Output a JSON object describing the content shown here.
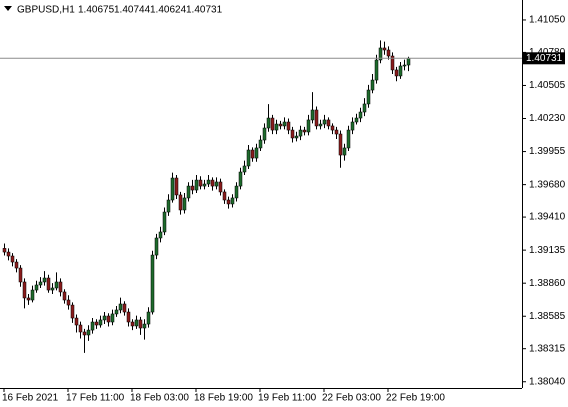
{
  "chart_data": {
    "type": "candlestick",
    "title": "GBPUSD,H1",
    "categories": [
      "16 Feb 2021",
      null,
      null,
      null,
      null,
      null,
      null,
      null,
      null,
      null,
      null,
      null,
      null,
      null,
      null,
      null,
      "17 Feb 11:00",
      null,
      null,
      null,
      null,
      null,
      null,
      null,
      null,
      null,
      null,
      null,
      null,
      null,
      null,
      null,
      "18 Feb 03:00",
      null,
      null,
      null,
      null,
      null,
      null,
      null,
      null,
      null,
      null,
      null,
      null,
      null,
      null,
      null,
      "18 Feb 19:00",
      null,
      null,
      null,
      null,
      null,
      null,
      null,
      null,
      null,
      null,
      null,
      null,
      null,
      null,
      null,
      "19 Feb 11:00",
      null,
      null,
      null,
      null,
      null,
      null,
      null,
      null,
      null,
      null,
      null,
      null,
      null,
      null,
      null,
      "22 Feb 03:00",
      null,
      null,
      null,
      null,
      null,
      null,
      null,
      null,
      null,
      null,
      null,
      null,
      null,
      null,
      null,
      "22 Feb 19:00",
      null,
      null,
      null,
      null,
      null
    ],
    "open": [
      1.3915,
      1.39119,
      1.39086,
      1.39036,
      1.38986,
      1.3887,
      1.38737,
      1.3872,
      1.38803,
      1.38845,
      1.3887,
      1.38903,
      1.38803,
      1.3882,
      1.3887,
      1.38787,
      1.3872,
      1.38678,
      1.3857,
      1.38512,
      1.38454,
      1.38429,
      1.3847,
      1.38537,
      1.38512,
      1.38554,
      1.38587,
      1.38537,
      1.38604,
      1.38637,
      1.38687,
      1.3862,
      1.38537,
      1.38504,
      1.38554,
      1.38487,
      1.3852,
      1.3862,
      1.39094,
      1.39236,
      1.39286,
      1.39452,
      1.39552,
      1.39735,
      1.39594,
      1.39469,
      1.39569,
      1.39668,
      1.39635,
      1.39718,
      1.39668,
      1.39685,
      1.39718,
      1.39668,
      1.39702,
      1.39619,
      1.39552,
      1.39519,
      1.39569,
      1.39668,
      1.39785,
      1.39835,
      1.39968,
      1.39901,
      1.39985,
      1.40051,
      1.40151,
      1.40234,
      1.40134,
      1.40184,
      1.40168,
      1.40201,
      1.40134,
      1.40068,
      1.40084,
      1.40134,
      1.40118,
      1.40218,
      1.40301,
      1.40168,
      1.40184,
      1.40218,
      1.40168,
      1.40134,
      1.40101,
      1.39926,
      1.39985,
      1.40134,
      1.40201,
      1.40234,
      1.40284,
      1.40351,
      1.40467,
      1.4055,
      1.40717,
      1.40817,
      1.408,
      1.4075,
      1.40634,
      1.40584,
      1.40667,
      1.40675
    ],
    "high": [
      1.3919,
      1.3915,
      1.3911,
      1.3906,
      1.3901,
      1.389,
      1.3877,
      1.3884,
      1.3888,
      1.3891,
      1.3896,
      1.3893,
      1.3886,
      1.3895,
      1.389,
      1.3881,
      1.3876,
      1.387,
      1.386,
      1.3854,
      1.3848,
      1.3851,
      1.3857,
      1.3856,
      1.3859,
      1.3862,
      1.3861,
      1.3864,
      1.3867,
      1.3874,
      1.3871,
      1.3865,
      1.3856,
      1.3859,
      1.3858,
      1.3856,
      1.3866,
      1.3913,
      1.3927,
      1.3933,
      1.3949,
      1.396,
      1.3978,
      1.3976,
      1.3962,
      1.3961,
      1.397,
      1.3972,
      1.3976,
      1.3975,
      1.3972,
      1.3976,
      1.3974,
      1.3974,
      1.3973,
      1.3964,
      1.3958,
      1.396,
      1.397,
      1.3982,
      1.3988,
      1.4001,
      1.3999,
      1.4002,
      1.4009,
      1.4019,
      1.4035,
      1.4026,
      1.4022,
      1.4021,
      1.4024,
      1.4023,
      1.4016,
      1.4012,
      1.4017,
      1.4016,
      1.4026,
      1.4045,
      1.4033,
      1.4022,
      1.4026,
      1.4024,
      1.4019,
      1.4016,
      1.4013,
      1.4002,
      1.4017,
      1.4024,
      1.4027,
      1.4032,
      1.404,
      1.4051,
      1.406,
      1.4076,
      1.4088,
      1.4087,
      1.4083,
      1.4078,
      1.4066,
      1.407,
      1.4072,
      1.40744
    ],
    "low": [
      1.3909,
      1.3905,
      1.39,
      1.3895,
      1.3883,
      1.3865,
      1.3868,
      1.387,
      1.3878,
      1.3882,
      1.3884,
      1.3878,
      1.3877,
      1.388,
      1.3875,
      1.3869,
      1.3864,
      1.3853,
      1.3845,
      1.384,
      1.3828,
      1.3838,
      1.3844,
      1.3848,
      1.3849,
      1.3852,
      1.385,
      1.3851,
      1.3858,
      1.3861,
      1.3859,
      1.385,
      1.3847,
      1.3848,
      1.3843,
      1.3839,
      1.3849,
      1.386,
      1.3906,
      1.392,
      1.3926,
      1.3942,
      1.3953,
      1.3956,
      1.3943,
      1.3944,
      1.3954,
      1.396,
      1.3961,
      1.3964,
      1.3964,
      1.3966,
      1.3963,
      1.3964,
      1.3959,
      1.3952,
      1.3948,
      1.3949,
      1.3954,
      1.3964,
      1.3976,
      1.3981,
      1.3987,
      1.3987,
      1.3996,
      1.4002,
      1.4012,
      1.401,
      1.401,
      1.4014,
      1.4014,
      1.401,
      1.4003,
      1.4004,
      1.4005,
      1.4009,
      1.4009,
      1.4019,
      1.4014,
      1.4014,
      1.4015,
      1.4014,
      1.401,
      1.4006,
      1.3982,
      1.3988,
      1.3996,
      1.401,
      1.4018,
      1.402,
      1.4025,
      1.4032,
      1.4044,
      1.4052,
      1.4069,
      1.4076,
      1.4072,
      1.406,
      1.4054,
      1.4056,
      1.4063,
      1.40624
    ],
    "close": [
      1.39119,
      1.39086,
      1.39036,
      1.38986,
      1.3887,
      1.38737,
      1.3872,
      1.38803,
      1.38845,
      1.3887,
      1.38903,
      1.38803,
      1.3882,
      1.3887,
      1.38787,
      1.3872,
      1.38678,
      1.3857,
      1.38512,
      1.38454,
      1.38429,
      1.3847,
      1.38537,
      1.38512,
      1.38554,
      1.38587,
      1.38537,
      1.38604,
      1.38637,
      1.38687,
      1.3862,
      1.38537,
      1.38504,
      1.38554,
      1.38487,
      1.3852,
      1.3862,
      1.39094,
      1.39236,
      1.39286,
      1.39452,
      1.39552,
      1.39735,
      1.39594,
      1.39469,
      1.39569,
      1.39668,
      1.39635,
      1.39718,
      1.39668,
      1.39685,
      1.39718,
      1.39668,
      1.39702,
      1.39619,
      1.39552,
      1.39519,
      1.39569,
      1.39668,
      1.39785,
      1.39835,
      1.39968,
      1.39901,
      1.39985,
      1.40051,
      1.40151,
      1.40234,
      1.40134,
      1.40184,
      1.40168,
      1.40201,
      1.40134,
      1.40068,
      1.40084,
      1.40134,
      1.40118,
      1.40218,
      1.40301,
      1.40168,
      1.40184,
      1.40218,
      1.40168,
      1.40134,
      1.40101,
      1.39926,
      1.39985,
      1.40134,
      1.40201,
      1.40234,
      1.40284,
      1.40351,
      1.40467,
      1.4055,
      1.40717,
      1.40817,
      1.408,
      1.4075,
      1.40634,
      1.40584,
      1.40667,
      1.40675,
      1.40731
    ],
    "up_color": "#1e6b2c",
    "down_color": "#8b1c1c",
    "ylim": [
      1.37988,
      1.41216
    ],
    "yticks": [
      {
        "value": 1.4105,
        "label": "1.41050"
      },
      {
        "value": 1.4078,
        "label": "1.40780"
      },
      {
        "value": 1.40505,
        "label": "1.40505"
      },
      {
        "value": 1.4023,
        "label": "1.40230"
      },
      {
        "value": 1.39955,
        "label": "1.39955"
      },
      {
        "value": 1.3968,
        "label": "1.39680"
      },
      {
        "value": 1.3941,
        "label": "1.39410"
      },
      {
        "value": 1.39135,
        "label": "1.39135"
      },
      {
        "value": 1.3886,
        "label": "1.38860"
      },
      {
        "value": 1.38585,
        "label": "1.38585"
      },
      {
        "value": 1.38315,
        "label": "1.38315"
      },
      {
        "value": 1.3804,
        "label": "1.38040"
      }
    ]
  }
}
